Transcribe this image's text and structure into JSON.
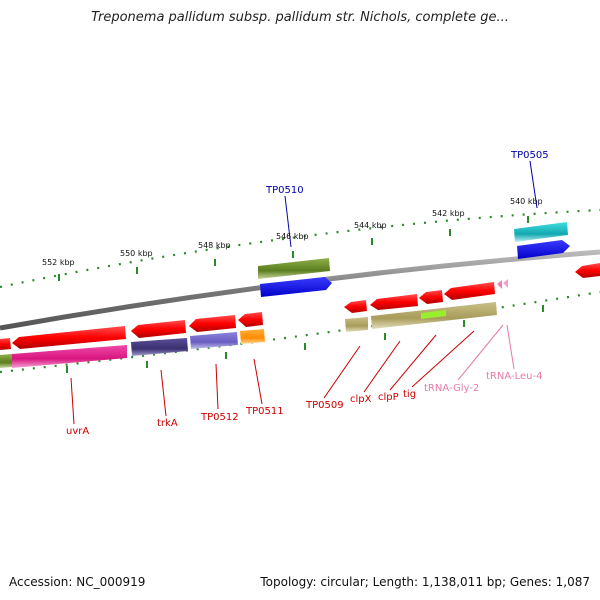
{
  "header": {
    "title": "Treponema pallidum subsp. pallidum str. Nichols, complete ge..."
  },
  "footer": {
    "accession": "Accession: NC_000919",
    "stats": "Topology: circular; Length: 1,138,011 bp; Genes: 1,087"
  },
  "scale": {
    "ticks": [
      "552 kbp",
      "550 kbp",
      "548 kbp",
      "546 kbp",
      "544 kbp",
      "542 kbp",
      "540 kbp"
    ]
  },
  "colors": {
    "gene": "#ff0000",
    "cds_blue": "#0000ee",
    "cds_olive": "#6b8e23",
    "label_red": "#cc0000",
    "label_blue": "#0000aa",
    "label_pink": "#e57aa8",
    "backbone": "#888888",
    "dots": "#2a8a2a"
  },
  "labels": {
    "tp0510": "TP0510",
    "tp0505": "TP0505",
    "uvrA": "uvrA",
    "trkA": "trkA",
    "tp0512": "TP0512",
    "tp0511": "TP0511",
    "tp0509": "TP0509",
    "clpX": "clpX",
    "clpP": "clpP",
    "tig": "tig",
    "trnaGly": "tRNA-Gly-2",
    "trnaLeu": "tRNA-Leu-4"
  }
}
